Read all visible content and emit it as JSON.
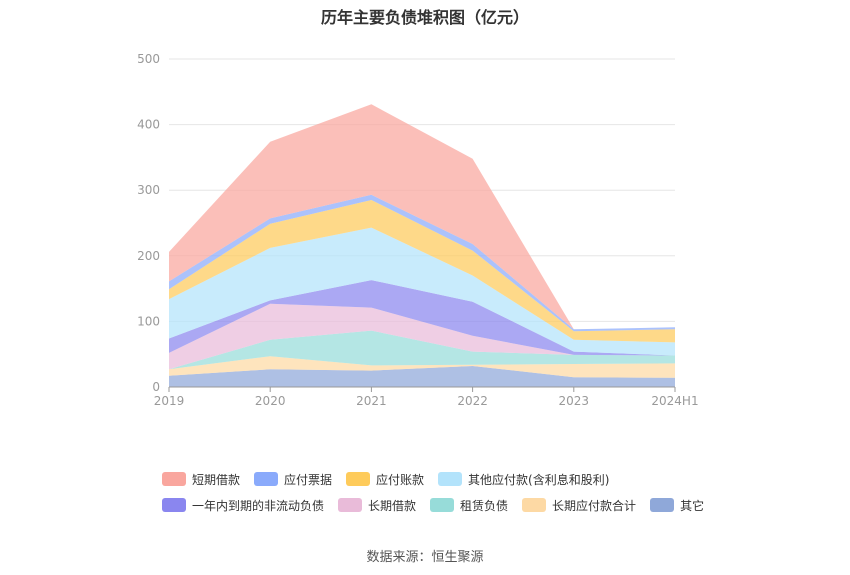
{
  "chart_data": {
    "type": "area",
    "stacked": true,
    "title": "历年主要负债堆积图（亿元）",
    "categories": [
      "2019",
      "2020",
      "2021",
      "2022",
      "2023",
      "2024H1"
    ],
    "ylim": [
      0,
      500
    ],
    "yticks": [
      0,
      100,
      200,
      300,
      400,
      500
    ],
    "grid": true,
    "legend_position": "bottom",
    "series": [
      {
        "name": "其它",
        "color": "#8fa8d9",
        "values": [
          17,
          27,
          25,
          32,
          15,
          14
        ]
      },
      {
        "name": "长期应付款合计",
        "color": "#fdd9a4",
        "values": [
          10,
          20,
          8,
          2,
          20,
          22
        ]
      },
      {
        "name": "租赁负债",
        "color": "#97dcd9",
        "values": [
          0,
          25,
          53,
          20,
          14,
          12
        ]
      },
      {
        "name": "长期借款",
        "color": "#e9bbd9",
        "values": [
          25,
          55,
          35,
          24,
          0,
          0
        ]
      },
      {
        "name": "一年内到期的非流动负债",
        "color": "#8a86ef",
        "values": [
          22,
          5,
          42,
          52,
          5,
          0
        ]
      },
      {
        "name": "其他应付款(含利息和股利)",
        "color": "#b3e3fb",
        "values": [
          60,
          80,
          80,
          40,
          18,
          20
        ]
      },
      {
        "name": "应付账款",
        "color": "#fecb5b",
        "values": [
          15,
          37,
          42,
          38,
          13,
          20
        ]
      },
      {
        "name": "应付票据",
        "color": "#8aaafb",
        "values": [
          12,
          8,
          8,
          10,
          3,
          3
        ]
      },
      {
        "name": "短期借款",
        "color": "#f9a69e",
        "values": [
          45,
          117,
          138,
          130,
          0,
          0
        ]
      }
    ],
    "legend_order": [
      "短期借款",
      "应付票据",
      "应付账款",
      "其他应付款(含利息和股利)",
      "一年内到期的非流动负债",
      "长期借款",
      "租赁负债",
      "长期应付款合计",
      "其它"
    ]
  },
  "footer": {
    "source": "数据来源：恒生聚源"
  }
}
